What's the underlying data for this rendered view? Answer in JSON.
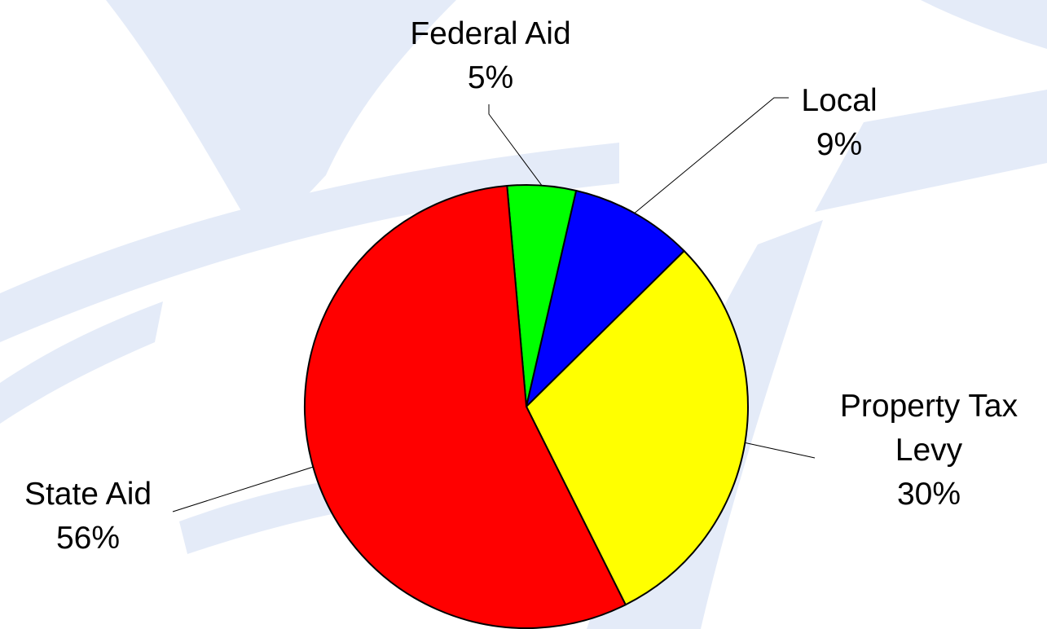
{
  "chart_data": {
    "type": "pie",
    "title": "",
    "slices": [
      {
        "label": [
          "Federal Aid"
        ],
        "value": 5,
        "value_label": "5%",
        "color": "#00ff00",
        "icon": "federal-aid"
      },
      {
        "label": [
          "Local"
        ],
        "value": 9,
        "value_label": "9%",
        "color": "#0000ff",
        "icon": "local"
      },
      {
        "label": [
          "Property Tax",
          "Levy"
        ],
        "value": 30,
        "value_label": "30%",
        "color": "#ffff00",
        "icon": "property-tax-levy"
      },
      {
        "label": [
          "State Aid"
        ],
        "value": 56,
        "value_label": "56%",
        "color": "#ff0000",
        "icon": "state-aid"
      }
    ],
    "start_angle_deg": -5,
    "direction": "clockwise",
    "legend": "none",
    "background_color": "#e4ebf8"
  }
}
